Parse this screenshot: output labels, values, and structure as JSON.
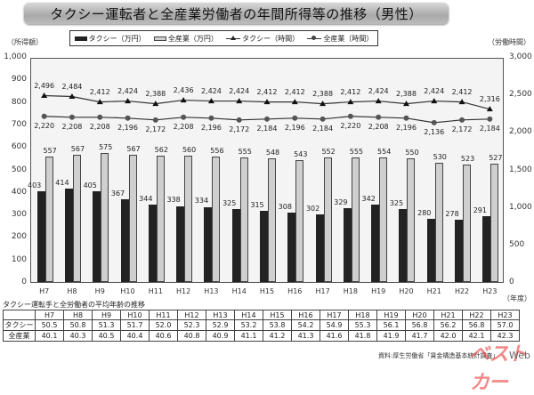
{
  "title": "タクシー運転者と全産業労働者の年間所得等の推移（男性）",
  "left_axis_unit": "（所得額）",
  "right_axis_unit": "（労働時間）",
  "year_unit": "（年度）",
  "legend": {
    "taxi_income": "タクシー（万円）",
    "all_income": "全産業（万円）",
    "taxi_hours": "タクシー（時間）",
    "all_hours": "全産業（時間）"
  },
  "colors": {
    "taxi_bar": "#222222",
    "all_bar": "#cfcfcf",
    "title_bar": "#b5b5b5",
    "plot_bg": "#f4f4f4"
  },
  "chart_data": {
    "type": "bar",
    "title": "タクシー運転者と全産業労働者の年間所得等の推移（男性）",
    "xlabel": "（年度）",
    "ylabel": "（所得額）",
    "y2label": "（労働時間）",
    "ylim": [
      0,
      1000
    ],
    "y2lim": [
      0,
      3000
    ],
    "yticks": [
      "0",
      "100",
      "200",
      "300",
      "400",
      "500",
      "600",
      "700",
      "800",
      "900",
      "1,000"
    ],
    "y2ticks": [
      "0",
      "500",
      "1,000",
      "1,500",
      "2,000",
      "2,500",
      "3,000"
    ],
    "legend_position": "top",
    "grid": false,
    "categories": [
      "H7",
      "H8",
      "H9",
      "H10",
      "H11",
      "H12",
      "H13",
      "H14",
      "H15",
      "H16",
      "H17",
      "H18",
      "H19",
      "H20",
      "H21",
      "H22",
      "H23"
    ],
    "series": [
      {
        "name": "タクシー（万円）",
        "type": "bar",
        "axis": "left",
        "values": [
          403,
          414,
          405,
          367,
          344,
          338,
          334,
          325,
          315,
          308,
          302,
          329,
          342,
          325,
          280,
          278,
          291
        ]
      },
      {
        "name": "全産業（万円）",
        "type": "bar",
        "axis": "left",
        "values": [
          557,
          567,
          575,
          567,
          562,
          560,
          556,
          555,
          548,
          543,
          552,
          555,
          554,
          550,
          530,
          523,
          527
        ]
      },
      {
        "name": "タクシー（時間）",
        "type": "line",
        "axis": "right",
        "marker": "triangle",
        "values": [
          2496,
          2484,
          2412,
          2424,
          2388,
          2436,
          2424,
          2424,
          2412,
          2412,
          2388,
          2412,
          2424,
          2388,
          2424,
          2412,
          2316
        ]
      },
      {
        "name": "全産業（時間）",
        "type": "line",
        "axis": "right",
        "marker": "circle",
        "values": [
          2220,
          2208,
          2208,
          2196,
          2172,
          2208,
          2196,
          2172,
          2184,
          2196,
          2184,
          2220,
          2208,
          2196,
          2136,
          2172,
          2184
        ]
      }
    ],
    "hour_labels": {
      "taxi": [
        "2,496",
        "2,484",
        "2,412",
        "2,424",
        "2,388",
        "2,436",
        "2,424",
        "2,424",
        "2,412",
        "2,412",
        "2,388",
        "2,412",
        "2,424",
        "2,388",
        "2,424",
        "2,412",
        "2,316"
      ],
      "all": [
        "2,220",
        "2,208",
        "2,208",
        "2,196",
        "2,172",
        "2,208",
        "2,196",
        "2,172",
        "2,184",
        "2,196",
        "2,184",
        "2,220",
        "2,208",
        "2,196",
        "2,136",
        "2,172",
        "2,184"
      ]
    }
  },
  "age_table": {
    "title": "タクシー運転手と全労働者の平均年齢の推移",
    "headers": [
      "",
      "H7",
      "H8",
      "H9",
      "H10",
      "H11",
      "H12",
      "H13",
      "H14",
      "H15",
      "H16",
      "H17",
      "H18",
      "H19",
      "H20",
      "H21",
      "H22",
      "H23"
    ],
    "rows": [
      {
        "label": "タクシー",
        "values": [
          "50.5",
          "50.8",
          "51.3",
          "51.7",
          "52.0",
          "52.3",
          "52.9",
          "53.2",
          "53.8",
          "54.2",
          "54.9",
          "55.3",
          "56.1",
          "56.8",
          "56.2",
          "56.8",
          "57.0"
        ]
      },
      {
        "label": "全産業",
        "values": [
          "40.1",
          "40.3",
          "40.5",
          "40.4",
          "40.6",
          "40.8",
          "40.9",
          "41.1",
          "41.2",
          "41.3",
          "41.6",
          "41.8",
          "41.9",
          "41.7",
          "42.0",
          "42.1",
          "42.3"
        ]
      }
    ]
  },
  "source": "資料:厚生労働省「賃金構造基本統計調査」",
  "watermark": "ベストカー",
  "watermark_suffix": "Web"
}
